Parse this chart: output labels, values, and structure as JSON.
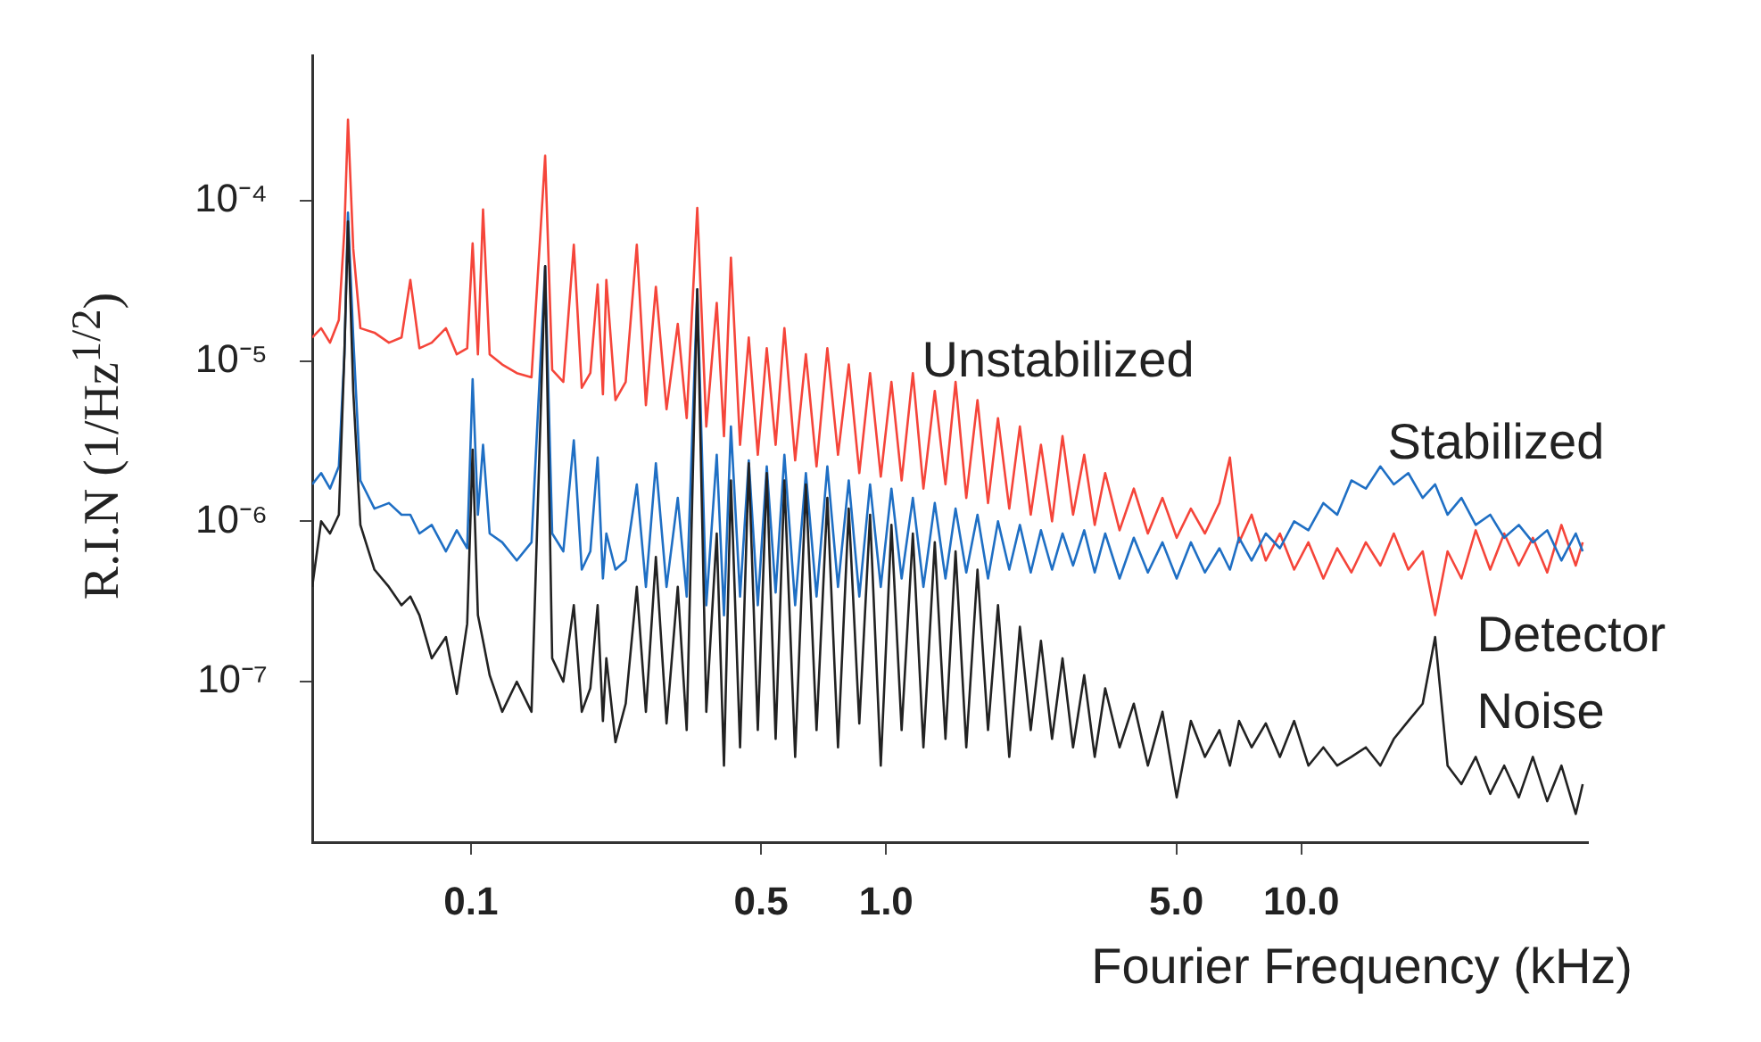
{
  "chart_data": {
    "type": "line",
    "xlabel": "Fourier Frequency (kHz)",
    "ylabel": "R.I.N (1/Hz$^{1/2}$)",
    "log": "xy",
    "marker": "none",
    "legend": false,
    "xlim": [
      0.0415,
      49
    ],
    "ylim": [
      1e-08,
      0.0008
    ],
    "xticks": [
      0.1,
      0.5,
      {
        "value": 1,
        "label": "1.0"
      },
      {
        "value": 5,
        "label": "5.0"
      },
      {
        "value": 10,
        "label": "10.0"
      }
    ],
    "yticks": [
      {
        "value": 1e-07,
        "label": "10⁻⁷"
      },
      {
        "value": 1e-06,
        "label": "10⁻⁶"
      },
      {
        "value": 1e-05,
        "label": "10⁻⁵"
      },
      {
        "value": 0.0001,
        "label": "10⁻⁴"
      }
    ],
    "x": [
      0.0415,
      0.0436,
      0.0458,
      0.0481,
      0.0496,
      0.0506,
      0.0521,
      0.0542,
      0.0586,
      0.0635,
      0.0681,
      0.0715,
      0.0752,
      0.0805,
      0.0871,
      0.0925,
      0.098,
      0.101,
      0.104,
      0.107,
      0.111,
      0.119,
      0.129,
      0.14,
      0.151,
      0.157,
      0.167,
      0.177,
      0.185,
      0.194,
      0.202,
      0.208,
      0.212,
      0.223,
      0.236,
      0.251,
      0.264,
      0.279,
      0.296,
      0.315,
      0.331,
      0.351,
      0.369,
      0.391,
      0.407,
      0.423,
      0.445,
      0.467,
      0.491,
      0.516,
      0.542,
      0.569,
      0.604,
      0.641,
      0.68,
      0.722,
      0.766,
      0.813,
      0.862,
      0.915,
      0.971,
      1.03,
      1.09,
      1.16,
      1.23,
      1.31,
      1.39,
      1.47,
      1.56,
      1.66,
      1.76,
      1.86,
      1.98,
      2.1,
      2.23,
      2.36,
      2.51,
      2.66,
      2.82,
      3.0,
      3.18,
      3.37,
      3.65,
      3.95,
      4.27,
      4.63,
      5.01,
      5.42,
      5.86,
      6.35,
      6.73,
      7.08,
      7.59,
      8.21,
      8.88,
      9.61,
      10.4,
      11.3,
      12.2,
      13.2,
      14.3,
      15.5,
      16.7,
      18.1,
      19.6,
      21.0,
      22.5,
      24.3,
      26.3,
      28.5,
      30.8,
      33.4,
      36.1,
      39.1,
      42.3,
      45.8,
      47.6
    ],
    "series": [
      {
        "name": "Unstabilized",
        "color": "#f5453a",
        "values": [
          1.4e-05,
          1.6e-05,
          1.3e-05,
          1.8e-05,
          6.5e-05,
          0.00032,
          5e-05,
          1.6e-05,
          1.5e-05,
          1.3e-05,
          1.4e-05,
          3.2e-05,
          1.2e-05,
          1.3e-05,
          1.6e-05,
          1.1e-05,
          1.2e-05,
          5.4e-05,
          1.1e-05,
          8.8e-05,
          1.1e-05,
          9.5e-06,
          8.4e-06,
          7.9e-06,
          0.00019,
          8.8e-06,
          7.4e-06,
          5.3e-05,
          6.8e-06,
          8.4e-06,
          3e-05,
          6.2e-06,
          3.2e-05,
          5.7e-06,
          7.4e-06,
          5.3e-05,
          5.3e-06,
          2.9e-05,
          5e-06,
          1.7e-05,
          4.4e-06,
          9e-05,
          3.9e-06,
          2.3e-05,
          3.4e-06,
          4.4e-05,
          3e-06,
          1.4e-05,
          2.6e-06,
          1.2e-05,
          3e-06,
          1.6e-05,
          2.4e-06,
          1.1e-05,
          2.2e-06,
          1.2e-05,
          2.6e-06,
          9.5e-06,
          2e-06,
          8.4e-06,
          1.9e-06,
          7.4e-06,
          1.8e-06,
          8.4e-06,
          1.6e-06,
          6.5e-06,
          1.7e-06,
          7.4e-06,
          1.4e-06,
          5.7e-06,
          1.3e-06,
          4.4e-06,
          1.2e-06,
          3.9e-06,
          1.1e-06,
          3e-06,
          1e-06,
          3.4e-06,
          1.1e-06,
          2.6e-06,
          9.5e-07,
          2e-06,
          8.8e-07,
          1.6e-06,
          8.4e-07,
          1.4e-06,
          7.9e-07,
          1.2e-06,
          8.4e-07,
          1.3e-06,
          2.5e-06,
          7.4e-07,
          1.1e-06,
          5.7e-07,
          8.4e-07,
          5e-07,
          7.4e-07,
          4.4e-07,
          6.8e-07,
          4.8e-07,
          7.4e-07,
          5.3e-07,
          8.4e-07,
          5e-07,
          6.5e-07,
          2.6e-07,
          6.5e-07,
          4.4e-07,
          8.8e-07,
          5e-07,
          8.4e-07,
          5.3e-07,
          7.9e-07,
          4.8e-07,
          9.5e-07,
          5.3e-07,
          7.4e-07
        ]
      },
      {
        "name": "Stabilized",
        "color": "#1f6fc4",
        "values": [
          1.7e-06,
          2e-06,
          1.6e-06,
          2.2e-06,
          1.1e-05,
          8.4e-05,
          1.4e-05,
          1.8e-06,
          1.2e-06,
          1.3e-06,
          1.1e-06,
          1.1e-06,
          8.4e-07,
          9.5e-07,
          6.5e-07,
          8.8e-07,
          6.8e-07,
          7.7e-06,
          1.1e-06,
          3e-06,
          8.4e-07,
          7.4e-07,
          5.7e-07,
          7.4e-07,
          3.9e-05,
          8.4e-07,
          6.5e-07,
          3.2e-06,
          5e-07,
          6.5e-07,
          2.5e-06,
          4.4e-07,
          8.4e-07,
          5e-07,
          5.7e-07,
          1.7e-06,
          3.9e-07,
          2.3e-06,
          3.9e-07,
          1.4e-06,
          3.4e-07,
          2.8e-05,
          3e-07,
          2.6e-06,
          2.6e-07,
          3.9e-06,
          3.4e-07,
          2.4e-06,
          3e-07,
          2.2e-06,
          3.6e-07,
          2.6e-06,
          3e-07,
          2e-06,
          3.4e-07,
          2.2e-06,
          3.9e-07,
          1.8e-06,
          3.4e-07,
          1.7e-06,
          3.9e-07,
          1.6e-06,
          4.4e-07,
          1.4e-06,
          3.9e-07,
          1.3e-06,
          4.4e-07,
          1.2e-06,
          4.8e-07,
          1.1e-06,
          4.4e-07,
          1e-06,
          5e-07,
          9.5e-07,
          4.8e-07,
          8.8e-07,
          5e-07,
          8.4e-07,
          5.3e-07,
          8.8e-07,
          4.8e-07,
          8.4e-07,
          4.4e-07,
          7.9e-07,
          4.8e-07,
          7.4e-07,
          4.4e-07,
          7.4e-07,
          4.8e-07,
          6.8e-07,
          5e-07,
          7.9e-07,
          5.7e-07,
          8.4e-07,
          6.8e-07,
          1e-06,
          8.8e-07,
          1.3e-06,
          1.1e-06,
          1.8e-06,
          1.6e-06,
          2.2e-06,
          1.7e-06,
          2e-06,
          1.4e-06,
          1.7e-06,
          1.1e-06,
          1.4e-06,
          9.5e-07,
          1.1e-06,
          7.9e-07,
          9.5e-07,
          7.4e-07,
          8.8e-07,
          5.7e-07,
          8.4e-07,
          6.5e-07
        ]
      },
      {
        "name": "Detector Noise",
        "color": "#222222",
        "values": [
          3.9e-07,
          1e-06,
          8.4e-07,
          1.1e-06,
          1.1e-05,
          7.4e-05,
          6.5e-06,
          9.5e-07,
          5e-07,
          3.9e-07,
          3e-07,
          3.4e-07,
          2.6e-07,
          1.4e-07,
          1.9e-07,
          8.4e-08,
          2.3e-07,
          2.8e-06,
          2.6e-07,
          1.8e-07,
          1.1e-07,
          6.5e-08,
          1e-07,
          6.5e-08,
          3.9e-05,
          1.4e-07,
          1e-07,
          3e-07,
          6.5e-08,
          9.1e-08,
          3e-07,
          5.7e-08,
          1.4e-07,
          4.2e-08,
          7.3e-08,
          3.9e-07,
          6.5e-08,
          6e-07,
          5.5e-08,
          3.9e-07,
          5e-08,
          2.8e-05,
          6.5e-08,
          8.4e-07,
          3e-08,
          1.8e-06,
          3.9e-08,
          2.3e-06,
          5e-08,
          2e-06,
          4.4e-08,
          1.8e-06,
          3.4e-08,
          1.7e-06,
          5e-08,
          1.4e-06,
          3.9e-08,
          1.2e-06,
          5.5e-08,
          1.1e-06,
          3e-08,
          9.5e-07,
          5e-08,
          8.4e-07,
          3.9e-08,
          7.4e-07,
          4.4e-08,
          6.5e-07,
          3.9e-08,
          5e-07,
          5e-08,
          3e-07,
          3.4e-08,
          2.2e-07,
          5e-08,
          1.8e-07,
          4.4e-08,
          1.4e-07,
          3.9e-08,
          1.1e-07,
          3.4e-08,
          9.1e-08,
          3.9e-08,
          7.3e-08,
          3e-08,
          6.5e-08,
          1.9e-08,
          5.7e-08,
          3.4e-08,
          5e-08,
          3e-08,
          5.7e-08,
          3.9e-08,
          5.5e-08,
          3.4e-08,
          5.7e-08,
          3e-08,
          3.9e-08,
          3e-08,
          3.4e-08,
          3.9e-08,
          3e-08,
          4.4e-08,
          5.7e-08,
          7.3e-08,
          1.9e-07,
          3e-08,
          2.3e-08,
          3.4e-08,
          2e-08,
          3e-08,
          1.9e-08,
          3.4e-08,
          1.8e-08,
          3e-08,
          1.5e-08,
          2.3e-08
        ]
      }
    ]
  }
}
